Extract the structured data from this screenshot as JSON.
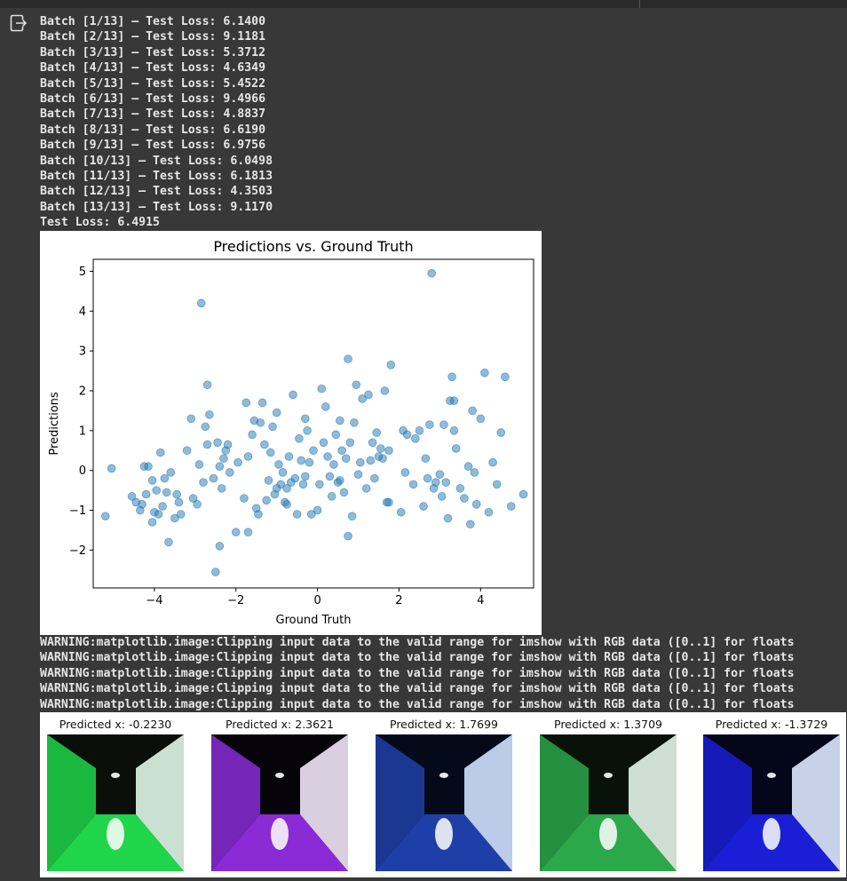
{
  "output": {
    "icon": "output-exit-icon",
    "log_lines": [
      "Batch [1/13] – Test Loss: 6.1400",
      "Batch [2/13] – Test Loss: 9.1181",
      "Batch [3/13] – Test Loss: 5.3712",
      "Batch [4/13] – Test Loss: 4.6349",
      "Batch [5/13] – Test Loss: 5.4522",
      "Batch [6/13] – Test Loss: 9.4966",
      "Batch [7/13] – Test Loss: 4.8837",
      "Batch [8/13] – Test Loss: 6.6190",
      "Batch [9/13] – Test Loss: 6.9756",
      "Batch [10/13] – Test Loss: 6.0498",
      "Batch [11/13] – Test Loss: 6.1813",
      "Batch [12/13] – Test Loss: 4.3503",
      "Batch [13/13] – Test Loss: 9.1170",
      "Test Loss: 6.4915"
    ],
    "warnings": [
      "WARNING:matplotlib.image:Clipping input data to the valid range for imshow with RGB data ([0..1] for floats",
      "WARNING:matplotlib.image:Clipping input data to the valid range for imshow with RGB data ([0..1] for floats",
      "WARNING:matplotlib.image:Clipping input data to the valid range for imshow with RGB data ([0..1] for floats",
      "WARNING:matplotlib.image:Clipping input data to the valid range for imshow with RGB data ([0..1] for floats",
      "WARNING:matplotlib.image:Clipping input data to the valid range for imshow with RGB data ([0..1] for floats"
    ],
    "thumbnails": [
      {
        "caption": "Predicted x: -0.2230",
        "palette": [
          "#0a0f0a",
          "#1fd64a",
          "#dff7e6"
        ]
      },
      {
        "caption": "Predicted x: 2.3621",
        "palette": [
          "#06030a",
          "#8a2bd6",
          "#f2e6f5"
        ]
      },
      {
        "caption": "Predicted x: 1.7699",
        "palette": [
          "#050a1a",
          "#1f3fa8",
          "#cfe0ff"
        ]
      },
      {
        "caption": "Predicted x: 1.3709",
        "palette": [
          "#081208",
          "#2aa84a",
          "#e6f5ea"
        ]
      },
      {
        "caption": "Predicted x: -1.3729",
        "palette": [
          "#04061a",
          "#1a1fd6",
          "#dde8ff"
        ]
      }
    ]
  },
  "chart_data": {
    "type": "scatter",
    "title": "Predictions vs. Ground Truth",
    "xlabel": "Ground Truth",
    "ylabel": "Predictions",
    "xlim": [
      -5.5,
      5.3
    ],
    "ylim": [
      -2.95,
      5.3
    ],
    "xticks": [
      -4,
      -2,
      0,
      2,
      4
    ],
    "yticks": [
      -2,
      -1,
      0,
      1,
      2,
      3,
      4,
      5
    ],
    "marker_color": "#1f77b4",
    "grid": false,
    "points": [
      [
        -5.2,
        -1.15
      ],
      [
        -5.05,
        0.05
      ],
      [
        -4.55,
        -0.65
      ],
      [
        -4.45,
        -0.8
      ],
      [
        -4.35,
        -1.0
      ],
      [
        -4.3,
        -0.85
      ],
      [
        -4.25,
        0.1
      ],
      [
        -4.2,
        -0.6
      ],
      [
        -4.15,
        0.1
      ],
      [
        -4.05,
        -1.3
      ],
      [
        -4.05,
        -0.25
      ],
      [
        -4.0,
        -1.05
      ],
      [
        -3.95,
        -0.5
      ],
      [
        -3.9,
        -1.1
      ],
      [
        -3.85,
        0.45
      ],
      [
        -3.8,
        -0.9
      ],
      [
        -3.75,
        -0.2
      ],
      [
        -3.7,
        -0.55
      ],
      [
        -3.65,
        -1.8
      ],
      [
        -3.6,
        -0.05
      ],
      [
        -3.5,
        -1.2
      ],
      [
        -3.45,
        -0.6
      ],
      [
        -3.4,
        -0.8
      ],
      [
        -3.35,
        -1.1
      ],
      [
        -3.2,
        0.5
      ],
      [
        -3.1,
        1.3
      ],
      [
        -3.05,
        -0.7
      ],
      [
        -2.95,
        -0.85
      ],
      [
        -2.9,
        0.15
      ],
      [
        -2.85,
        4.2
      ],
      [
        -2.8,
        -0.3
      ],
      [
        -2.75,
        1.1
      ],
      [
        -2.7,
        0.65
      ],
      [
        -2.7,
        2.15
      ],
      [
        -2.65,
        1.4
      ],
      [
        -2.55,
        -0.2
      ],
      [
        -2.45,
        0.7
      ],
      [
        -2.4,
        -1.9
      ],
      [
        -2.4,
        0.1
      ],
      [
        -2.35,
        -0.45
      ],
      [
        -2.3,
        0.3
      ],
      [
        -2.25,
        0.5
      ],
      [
        -2.2,
        0.65
      ],
      [
        -2.15,
        -0.05
      ],
      [
        -2.0,
        -1.55
      ],
      [
        -1.95,
        0.2
      ],
      [
        -1.8,
        -0.7
      ],
      [
        -1.75,
        1.7
      ],
      [
        -1.7,
        0.35
      ],
      [
        -1.6,
        0.9
      ],
      [
        -1.55,
        1.25
      ],
      [
        -1.5,
        -0.95
      ],
      [
        -1.45,
        -1.1
      ],
      [
        -1.4,
        1.2
      ],
      [
        -1.35,
        1.7
      ],
      [
        -1.3,
        0.65
      ],
      [
        -1.25,
        -0.75
      ],
      [
        -1.2,
        -0.25
      ],
      [
        -1.15,
        0.45
      ],
      [
        -1.1,
        1.1
      ],
      [
        -1.05,
        -0.6
      ],
      [
        -1.0,
        1.45
      ],
      [
        -0.95,
        0.15
      ],
      [
        -0.9,
        -0.35
      ],
      [
        -0.85,
        -0.05
      ],
      [
        -0.8,
        -0.8
      ],
      [
        -0.75,
        -0.45
      ],
      [
        -0.7,
        0.35
      ],
      [
        -0.65,
        -0.3
      ],
      [
        -0.6,
        1.9
      ],
      [
        -0.55,
        -0.2
      ],
      [
        -0.5,
        -1.1
      ],
      [
        -0.45,
        0.8
      ],
      [
        -0.4,
        0.25
      ],
      [
        -0.35,
        -0.35
      ],
      [
        -0.3,
        1.3
      ],
      [
        -0.25,
        1.0
      ],
      [
        -0.2,
        0.2
      ],
      [
        -0.15,
        -1.1
      ],
      [
        -0.1,
        0.5
      ],
      [
        0.0,
        -1.0
      ],
      [
        0.05,
        -0.35
      ],
      [
        0.1,
        2.05
      ],
      [
        0.15,
        0.7
      ],
      [
        0.2,
        1.6
      ],
      [
        0.25,
        0.35
      ],
      [
        0.3,
        -0.15
      ],
      [
        0.35,
        -0.65
      ],
      [
        0.4,
        0.15
      ],
      [
        0.45,
        0.9
      ],
      [
        0.5,
        -0.3
      ],
      [
        0.55,
        1.25
      ],
      [
        0.6,
        0.5
      ],
      [
        0.65,
        -0.55
      ],
      [
        0.7,
        0.3
      ],
      [
        0.75,
        2.8
      ],
      [
        0.8,
        0.7
      ],
      [
        0.85,
        -1.15
      ],
      [
        0.9,
        1.2
      ],
      [
        0.95,
        2.15
      ],
      [
        1.0,
        -0.1
      ],
      [
        1.05,
        0.2
      ],
      [
        1.1,
        1.8
      ],
      [
        1.2,
        -0.45
      ],
      [
        1.25,
        1.9
      ],
      [
        1.3,
        0.25
      ],
      [
        1.35,
        0.7
      ],
      [
        1.4,
        -0.2
      ],
      [
        1.45,
        0.95
      ],
      [
        1.5,
        0.35
      ],
      [
        1.55,
        0.55
      ],
      [
        1.6,
        0.3
      ],
      [
        1.65,
        2.0
      ],
      [
        1.7,
        -0.8
      ],
      [
        1.75,
        0.5
      ],
      [
        1.8,
        2.65
      ],
      [
        2.05,
        -1.05
      ],
      [
        2.1,
        1.0
      ],
      [
        2.15,
        -0.05
      ],
      [
        2.2,
        0.9
      ],
      [
        2.35,
        -0.35
      ],
      [
        2.4,
        0.8
      ],
      [
        2.5,
        1.0
      ],
      [
        2.6,
        -0.9
      ],
      [
        2.65,
        0.3
      ],
      [
        2.7,
        -0.2
      ],
      [
        2.75,
        1.15
      ],
      [
        2.8,
        4.95
      ],
      [
        2.85,
        -0.45
      ],
      [
        2.9,
        -0.3
      ],
      [
        3.0,
        -0.1
      ],
      [
        3.05,
        -0.65
      ],
      [
        3.1,
        1.15
      ],
      [
        3.15,
        -0.3
      ],
      [
        3.2,
        -1.2
      ],
      [
        3.25,
        1.75
      ],
      [
        3.3,
        2.35
      ],
      [
        3.35,
        1.0
      ],
      [
        3.4,
        0.55
      ],
      [
        3.5,
        -0.45
      ],
      [
        3.6,
        -0.7
      ],
      [
        3.7,
        0.1
      ],
      [
        3.75,
        -1.35
      ],
      [
        3.8,
        1.5
      ],
      [
        3.85,
        -0.05
      ],
      [
        3.9,
        -0.85
      ],
      [
        4.0,
        1.3
      ],
      [
        4.1,
        2.45
      ],
      [
        4.2,
        -1.05
      ],
      [
        4.3,
        0.2
      ],
      [
        4.4,
        -0.35
      ],
      [
        4.5,
        0.95
      ],
      [
        4.6,
        2.35
      ],
      [
        4.75,
        -0.9
      ],
      [
        5.05,
        -0.6
      ],
      [
        1.75,
        -0.8
      ],
      [
        0.75,
        -1.65
      ],
      [
        -1.7,
        -1.55
      ],
      [
        -2.5,
        -2.55
      ],
      [
        -0.75,
        -0.85
      ],
      [
        3.35,
        1.75
      ],
      [
        -1.0,
        -0.45
      ],
      [
        0.55,
        -0.25
      ],
      [
        -0.3,
        -0.15
      ]
    ]
  }
}
